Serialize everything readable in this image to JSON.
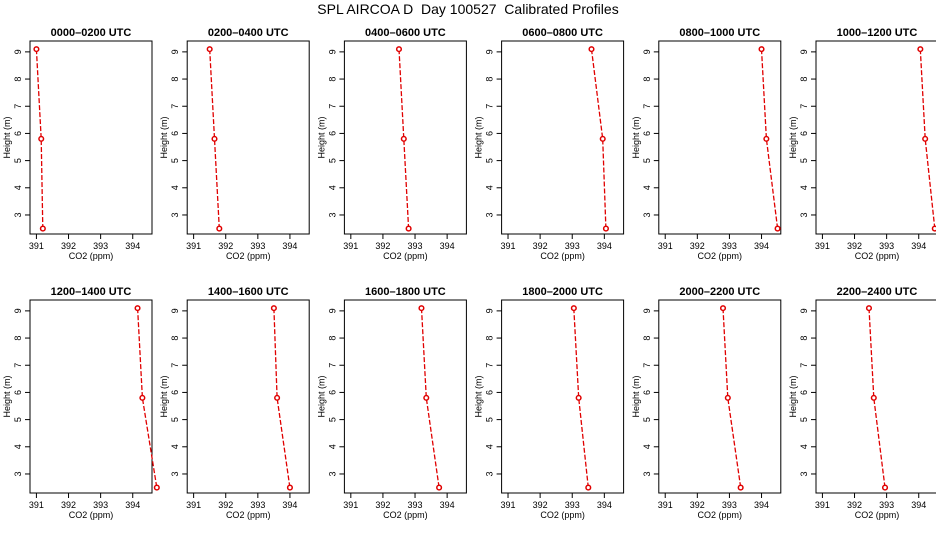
{
  "title": "SPL AIRCOA D  Day 100527  Calibrated Profiles",
  "chart_data": {
    "type": "line",
    "layout": "2x6 small multiples",
    "xlabel": "CO2 (ppm)",
    "ylabel": "Height (m)",
    "xlim": [
      390.8,
      394.6
    ],
    "ylim": [
      2.3,
      9.4
    ],
    "xticks": [
      "391",
      "392",
      "393",
      "394"
    ],
    "yticks": [
      "3",
      "4",
      "5",
      "6",
      "7",
      "8",
      "9"
    ],
    "heights": [
      9.1,
      5.8,
      2.5
    ],
    "marker": "open-circle",
    "line_color": "#e00000",
    "grid": false,
    "panels": [
      {
        "title": "0000–0200 UTC",
        "co2": [
          391.0,
          391.15,
          391.2
        ]
      },
      {
        "title": "0200–0400 UTC",
        "co2": [
          391.5,
          391.65,
          391.8
        ]
      },
      {
        "title": "0400–0600 UTC",
        "co2": [
          392.5,
          392.65,
          392.8
        ]
      },
      {
        "title": "0600–0800 UTC",
        "co2": [
          393.6,
          393.95,
          394.05
        ]
      },
      {
        "title": "0800–1000 UTC",
        "co2": [
          394.0,
          394.15,
          394.5
        ]
      },
      {
        "title": "1000–1200 UTC",
        "co2": [
          394.05,
          394.2,
          394.5
        ]
      },
      {
        "title": "1200–1400 UTC",
        "co2": [
          394.15,
          394.3,
          394.75
        ]
      },
      {
        "title": "1400–1600 UTC",
        "co2": [
          393.5,
          393.6,
          394.0
        ]
      },
      {
        "title": "1600–1800 UTC",
        "co2": [
          393.2,
          393.35,
          393.75
        ]
      },
      {
        "title": "1800–2000 UTC",
        "co2": [
          393.05,
          393.2,
          393.5
        ]
      },
      {
        "title": "2000–2200 UTC",
        "co2": [
          392.8,
          392.95,
          393.35
        ]
      },
      {
        "title": "2200–2400 UTC",
        "co2": [
          392.45,
          392.6,
          392.95
        ]
      }
    ]
  }
}
